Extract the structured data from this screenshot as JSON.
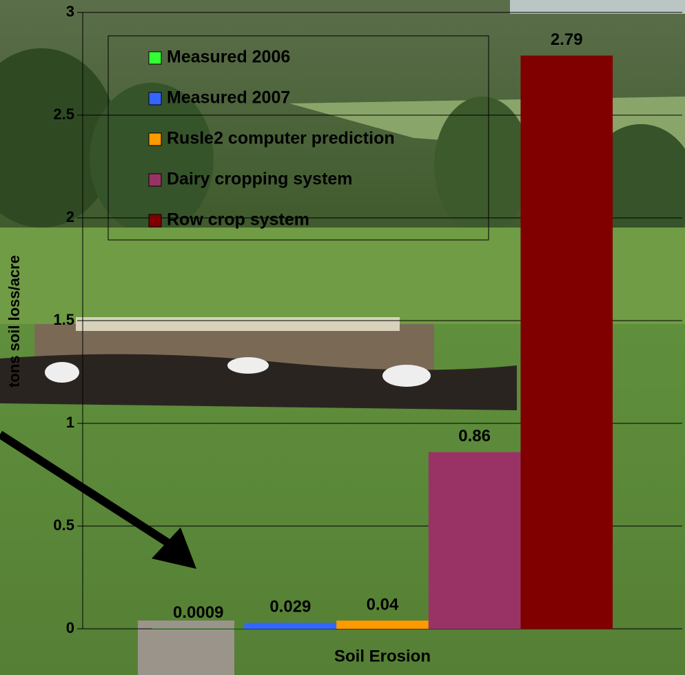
{
  "chart_data": {
    "type": "bar",
    "categories": [
      "Soil Erosion"
    ],
    "ylabel": "tons soil loss/acre",
    "series": [
      {
        "name": "Measured 2006",
        "color": "#33ff33",
        "values": [
          0.0009
        ]
      },
      {
        "name": "Measured 2007",
        "color": "#3366ff",
        "values": [
          0.029
        ]
      },
      {
        "name": "Rusle2 computer prediction",
        "color": "#ff9900",
        "values": [
          0.04
        ]
      },
      {
        "name": "Dairy cropping system",
        "color": "#993366",
        "values": [
          0.86
        ]
      },
      {
        "name": "Row crop system",
        "color": "#800000",
        "values": [
          2.79
        ]
      }
    ],
    "ylim": [
      0,
      3
    ],
    "yticks": [
      0,
      0.5,
      1,
      1.5,
      2,
      2.5,
      3
    ],
    "grid": true,
    "legend": "upper left"
  }
}
